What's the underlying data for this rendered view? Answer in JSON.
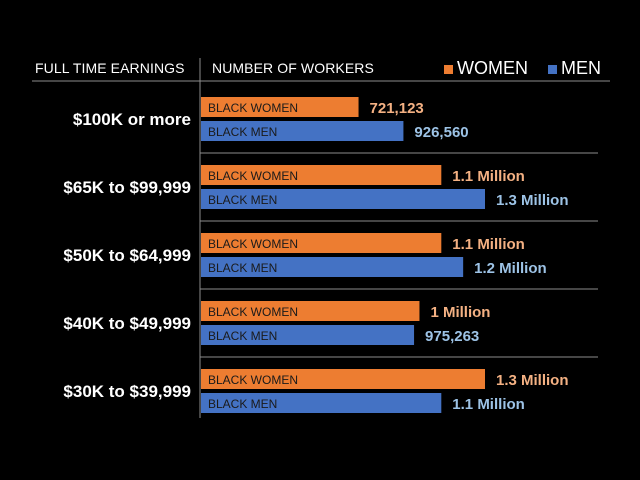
{
  "chart_data": {
    "type": "bar",
    "orientation": "horizontal",
    "header_left": "FULL TIME EARNINGS",
    "header_right": "NUMBER OF WORKERS",
    "colors": {
      "women": "#ED7D31",
      "men": "#4472C4",
      "women_value_text": "#F4B183",
      "men_value_text": "#9DC3E6"
    },
    "legend": {
      "position": "top-right",
      "items": [
        {
          "label": "WOMEN",
          "color": "#ED7D31"
        },
        {
          "label": "MEN",
          "color": "#4472C4"
        }
      ]
    },
    "categories": [
      "$100K or more",
      "$65K to $99,999",
      "$50K to $64,999",
      "$40K to $49,999",
      "$30K to $39,999"
    ],
    "series": [
      {
        "name": "BLACK WOMEN",
        "values": [
          721123,
          1100000,
          1100000,
          1000000,
          1300000
        ],
        "labels": [
          "721,123",
          "1.1 Million",
          "1.1 Million",
          "1 Million",
          "1.3 Million"
        ]
      },
      {
        "name": "BLACK MEN",
        "values": [
          926560,
          1300000,
          1200000,
          975263,
          1100000
        ],
        "labels": [
          "926,560",
          "1.3 Million",
          "1.2 Million",
          "975,263",
          "1.1 Million"
        ]
      }
    ]
  }
}
